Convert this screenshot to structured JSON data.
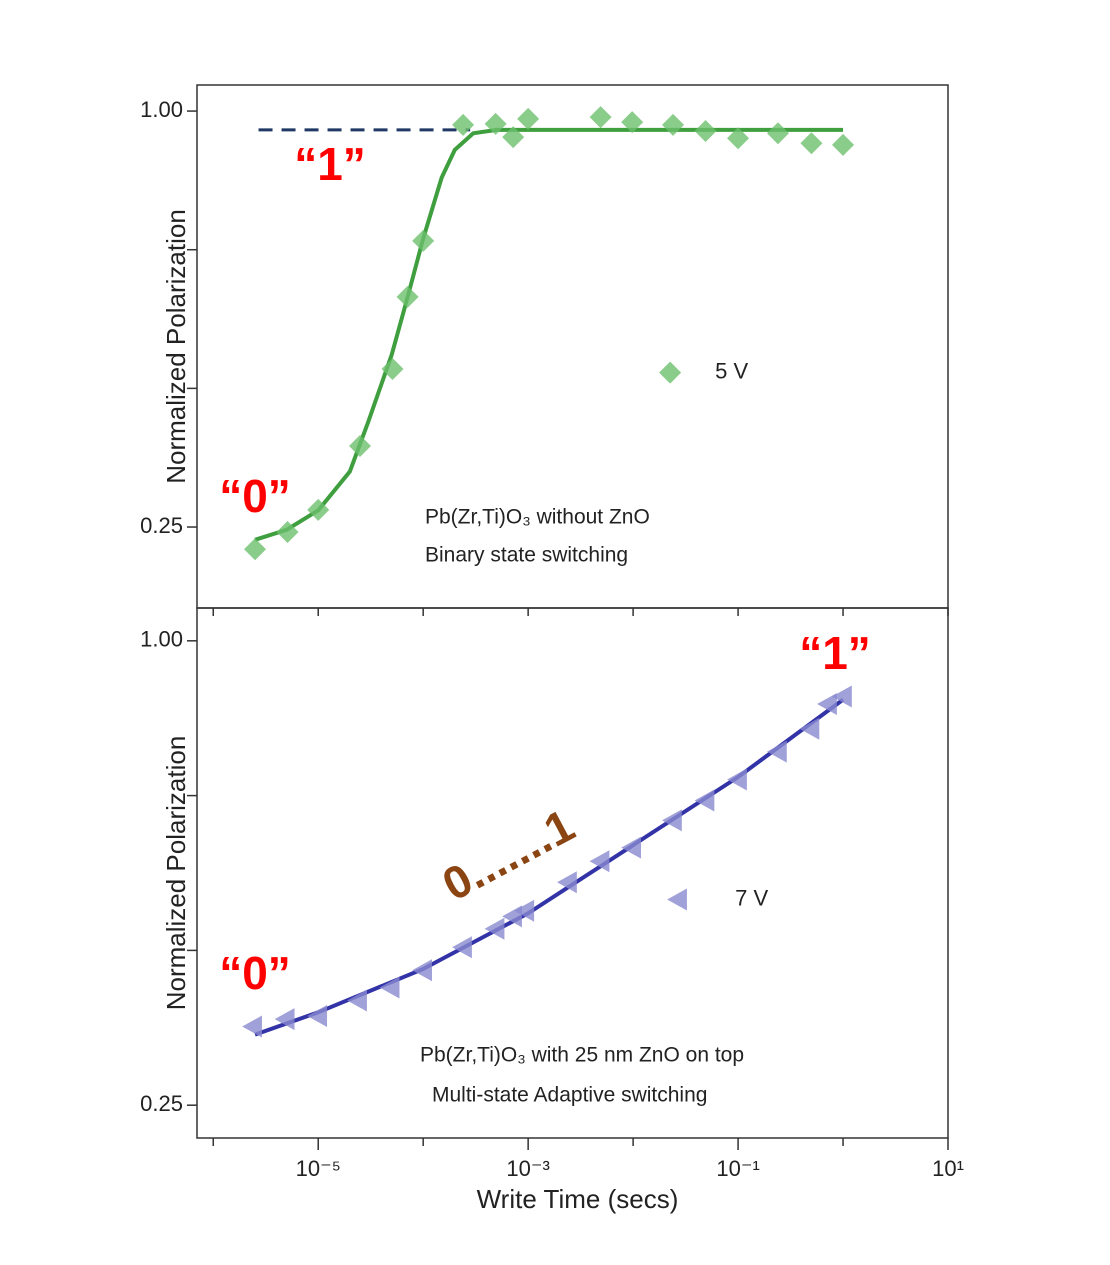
{
  "chart_data": [
    {
      "type": "scatter",
      "ylabel": "Normalized Polarization",
      "xscale": "log",
      "xlim": [
        7e-07,
        10
      ],
      "ylim": [
        0.104,
        1.047
      ],
      "yticks": [
        0.25,
        {
          "value": 1,
          "label": "1.00"
        }
      ],
      "yminor": [
        0.5,
        0.75
      ],
      "xminor": [
        1e-06,
        1e-05,
        0.0001,
        0.001,
        0.01,
        0.1,
        1,
        10
      ],
      "series": [
        {
          "name": "5 V",
          "color": "#6dbf6d",
          "marker": "diamond",
          "x": [
            2.5e-06,
            5.1e-06,
            1e-05,
            2.5e-05,
            5.1e-05,
            7.1e-05,
            0.0001,
            0.00024,
            0.00049,
            0.00072,
            0.001,
            0.0049,
            0.0098,
            0.024,
            0.049,
            0.1,
            0.24,
            0.5,
            1
          ],
          "values": [
            0.21,
            0.241,
            0.281,
            0.396,
            0.535,
            0.665,
            0.766,
            0.975,
            0.977,
            0.953,
            0.986,
            0.989,
            0.98,
            0.975,
            0.964,
            0.951,
            0.96,
            0.942,
            0.939
          ]
        }
      ],
      "fit": {
        "color": "#3f9f3f",
        "x": [
          2.5e-06,
          5e-06,
          1e-05,
          2e-05,
          3e-05,
          5e-05,
          7e-05,
          0.0001,
          0.00015,
          0.0002,
          0.0003,
          0.0005,
          1
        ],
        "values": [
          0.227,
          0.245,
          0.28,
          0.35,
          0.44,
          0.56,
          0.66,
          0.77,
          0.88,
          0.93,
          0.96,
          0.966,
          0.966
        ]
      },
      "reference_line": {
        "y": 0.966,
        "x": [
          2.7e-06,
          0.00028
        ],
        "color": "#1f3864",
        "style": "dashed"
      },
      "legend": "right",
      "annotations": [
        {
          "text": "“1”",
          "color": "#ff0000",
          "style": "big"
        },
        {
          "text": "“0”",
          "color": "#ff0000",
          "style": "big"
        },
        {
          "text": "Pb(Zr,Ti)O₃ without ZnO",
          "color": "#222222",
          "style": "note"
        },
        {
          "text": "Binary state switching",
          "color": "#222222",
          "style": "note"
        }
      ]
    },
    {
      "type": "scatter",
      "ylabel": "Normalized Polarization",
      "xlabel": "Write Time (secs)",
      "xscale": "log",
      "xlim": [
        7e-07,
        10
      ],
      "ylim": [
        0.197,
        1.053
      ],
      "yticks": [
        0.25,
        {
          "value": 1,
          "label": "1.00"
        }
      ],
      "yminor": [
        0.5,
        0.75
      ],
      "xticks": [
        {
          "value": 1e-05,
          "label": "10⁻⁵"
        },
        {
          "value": 0.001,
          "label": "10⁻³"
        },
        {
          "value": 0.1,
          "label": "10⁻¹"
        },
        {
          "value": 10,
          "label": "10¹"
        }
      ],
      "xminor": [
        1e-06,
        0.0001,
        0.01,
        1
      ],
      "series": [
        {
          "name": "7 V",
          "color": "#8a8ad0",
          "marker": "triangle-left",
          "x": [
            2.4e-06,
            4.9e-06,
            1e-05,
            2.4e-05,
            4.9e-05,
            0.0001,
            0.00024,
            0.00049,
            0.00072,
            0.00094,
            0.0024,
            0.0049,
            0.0098,
            0.024,
            0.049,
            0.1,
            0.24,
            0.49,
            0.72,
            1
          ],
          "values": [
            0.377,
            0.389,
            0.394,
            0.419,
            0.44,
            0.468,
            0.505,
            0.535,
            0.555,
            0.564,
            0.61,
            0.644,
            0.666,
            0.71,
            0.742,
            0.776,
            0.821,
            0.858,
            0.898,
            0.91
          ]
        }
      ],
      "fit": {
        "color": "#3333a8",
        "x": [
          2.5e-06,
          1e-05,
          0.0001,
          0.001,
          0.01,
          0.1,
          1
        ],
        "values": [
          0.364,
          0.4,
          0.47,
          0.56,
          0.67,
          0.78,
          0.905
        ]
      },
      "legend": "right",
      "annotations": [
        {
          "text": "“1”",
          "color": "#ff0000",
          "style": "big"
        },
        {
          "text": "“0”",
          "color": "#ff0000",
          "style": "big"
        },
        {
          "text": "0.......1",
          "color": "#8b4513",
          "style": "big"
        },
        {
          "text": "Pb(Zr,Ti)O₃ with 25 nm ZnO on top",
          "color": "#222222",
          "style": "note"
        },
        {
          "text": "Multi-state Adaptive switching",
          "color": "#222222",
          "style": "note"
        }
      ]
    }
  ]
}
